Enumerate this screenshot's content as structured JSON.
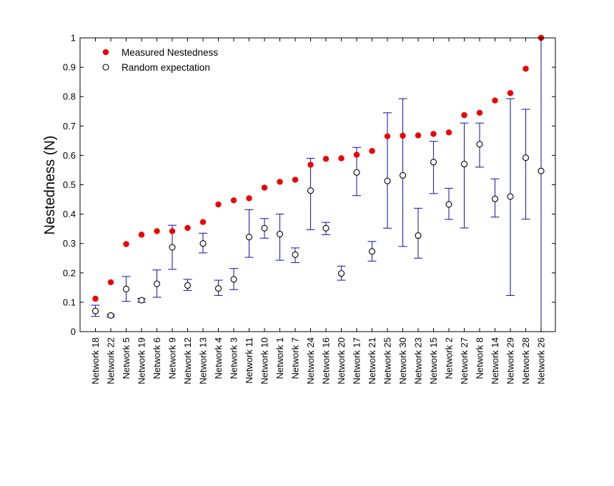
{
  "chart_data": {
    "type": "scatter",
    "title": "",
    "xlabel": "",
    "ylabel": "Nestedness (N)",
    "ylim": [
      0,
      1
    ],
    "yticks": [
      "0",
      "0.1",
      "0.2",
      "0.3",
      "0.4",
      "0.5",
      "0.6",
      "0.7",
      "0.8",
      "0.9",
      "1"
    ],
    "grid": false,
    "legend_position": "top-left",
    "categories": [
      "Network 18",
      "Network 22",
      "Network 5",
      "Network 19",
      "Network 6",
      "Network 9",
      "Network 12",
      "Network 13",
      "Network 4",
      "Network 3",
      "Network 11",
      "Network 10",
      "Network 1",
      "Network 7",
      "Network 24",
      "Network 16",
      "Network 20",
      "Network 17",
      "Network 21",
      "Network 25",
      "Network 30",
      "Network 23",
      "Network 15",
      "Network 2",
      "Network 27",
      "Network 8",
      "Network 14",
      "Network 29",
      "Network 28",
      "Network 26"
    ],
    "series": [
      {
        "name": "Measured Nestedness",
        "marker": "filled-circle",
        "color": "#ee0000",
        "values": [
          0.112,
          0.168,
          0.298,
          0.33,
          0.342,
          0.342,
          0.353,
          0.373,
          0.433,
          0.447,
          0.454,
          0.49,
          0.51,
          0.517,
          0.568,
          0.588,
          0.59,
          0.602,
          0.615,
          0.665,
          0.667,
          0.668,
          0.673,
          0.678,
          0.737,
          0.745,
          0.787,
          0.812,
          0.895,
          1.0
        ]
      },
      {
        "name": "Random expectation",
        "marker": "open-circle",
        "color": "#000000",
        "values": [
          0.07,
          0.055,
          0.145,
          0.107,
          0.163,
          0.287,
          0.157,
          0.3,
          0.147,
          0.178,
          0.322,
          0.352,
          0.332,
          0.262,
          0.48,
          0.352,
          0.198,
          0.542,
          0.273,
          0.513,
          0.532,
          0.327,
          0.577,
          0.433,
          0.57,
          0.638,
          0.452,
          0.46,
          0.592,
          0.547
        ],
        "error_color": "#2222bb",
        "error_low": [
          0.052,
          0.05,
          0.103,
          0.1,
          0.117,
          0.212,
          0.14,
          0.268,
          0.123,
          0.143,
          0.253,
          0.318,
          0.243,
          0.235,
          0.347,
          0.33,
          0.175,
          0.463,
          0.24,
          0.352,
          0.29,
          0.25,
          0.47,
          0.382,
          0.353,
          0.56,
          0.39,
          0.123,
          0.383,
          0.0
        ],
        "error_high": [
          0.09,
          0.058,
          0.188,
          0.113,
          0.21,
          0.362,
          0.178,
          0.335,
          0.175,
          0.215,
          0.415,
          0.385,
          0.4,
          0.285,
          0.59,
          0.372,
          0.223,
          0.627,
          0.307,
          0.745,
          0.793,
          0.42,
          0.648,
          0.488,
          0.71,
          0.71,
          0.52,
          0.793,
          0.757,
          1.0
        ]
      }
    ]
  }
}
